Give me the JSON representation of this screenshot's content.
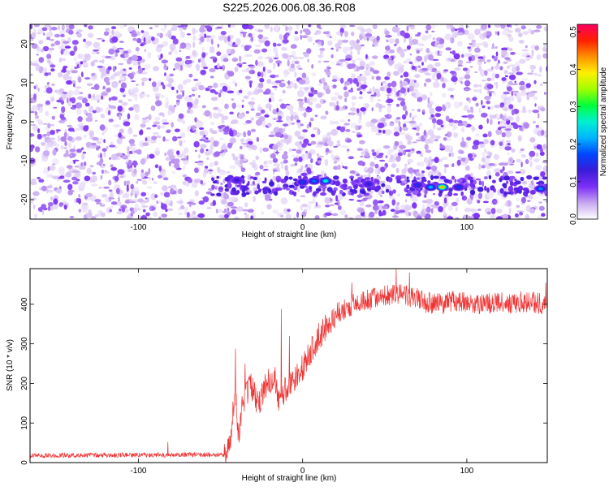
{
  "page_title": "S225.2026.006.08.36.R08",
  "colors": {
    "line": "#ee3333",
    "axis": "#000000",
    "background": "#ffffff"
  },
  "chart_data": [
    {
      "type": "heatmap",
      "title": "S225.2026.006.08.36.R08",
      "xlabel": "Height of straight line (km)",
      "ylabel": "Frequency (Hz)",
      "xlim": [
        -166,
        149
      ],
      "ylim": [
        -25,
        25
      ],
      "xticks": [
        -100,
        0,
        100
      ],
      "yticks": [
        -20,
        -10,
        0,
        10,
        20
      ],
      "grid": false,
      "colorbar": {
        "label": "Normalized spectral amplitude",
        "range": [
          0,
          0.52
        ],
        "ticks": [
          "0.0",
          "0.1",
          "0.2",
          "0.3",
          "0.4",
          "0.5"
        ],
        "colormap": "rainbow",
        "colors": [
          "#ffffff",
          "#c8a8f0",
          "#7b2ff7",
          "#3b1bd8",
          "#0046ff",
          "#00b4ff",
          "#00f0d0",
          "#00ff3c",
          "#a0ff00",
          "#fff000",
          "#ff9000",
          "#ff2000",
          "#ff0060"
        ]
      },
      "background_level": 0.05,
      "band": {
        "center_frequency": -16.5,
        "x_range": [
          -55,
          149
        ],
        "peaks": [
          {
            "x": -40,
            "y": -15,
            "value": 0.13
          },
          {
            "x": 0,
            "y": -15.5,
            "value": 0.16
          },
          {
            "x": 7,
            "y": -15.2,
            "value": 0.19
          },
          {
            "x": 14,
            "y": -15.2,
            "value": 0.26
          },
          {
            "x": 40,
            "y": -16,
            "value": 0.14
          },
          {
            "x": 70,
            "y": -16.3,
            "value": 0.15
          },
          {
            "x": 78,
            "y": -16.8,
            "value": 0.22
          },
          {
            "x": 85,
            "y": -16.8,
            "value": 0.42
          },
          {
            "x": 95,
            "y": -16.8,
            "value": 0.16
          },
          {
            "x": 145,
            "y": -17.2,
            "value": 0.2
          }
        ]
      }
    },
    {
      "type": "line",
      "xlabel": "Height of straight line (km)",
      "ylabel": "SNR (10 * v/v)",
      "xlim": [
        -166,
        149
      ],
      "ylim": [
        0,
        490
      ],
      "xticks": [
        -100,
        0,
        100
      ],
      "yticks": [
        0,
        100,
        200,
        300,
        400
      ],
      "grid": false,
      "series": [
        {
          "color": "#ee3333",
          "envelope": [
            {
              "x": -166,
              "y": 18
            },
            {
              "x": -48,
              "y": 20
            },
            {
              "x": -44,
              "y": 55
            },
            {
              "x": -41,
              "y": 185
            },
            {
              "x": -39,
              "y": 60
            },
            {
              "x": -37,
              "y": 145
            },
            {
              "x": -32,
              "y": 195
            },
            {
              "x": -27,
              "y": 150
            },
            {
              "x": -22,
              "y": 200
            },
            {
              "x": -17,
              "y": 215
            },
            {
              "x": -14,
              "y": 145
            },
            {
              "x": -10,
              "y": 190
            },
            {
              "x": -4,
              "y": 210
            },
            {
              "x": 0,
              "y": 240
            },
            {
              "x": 5,
              "y": 280
            },
            {
              "x": 10,
              "y": 320
            },
            {
              "x": 15,
              "y": 345
            },
            {
              "x": 20,
              "y": 375
            },
            {
              "x": 28,
              "y": 395
            },
            {
              "x": 38,
              "y": 410
            },
            {
              "x": 50,
              "y": 420
            },
            {
              "x": 62,
              "y": 425
            },
            {
              "x": 75,
              "y": 405
            },
            {
              "x": 85,
              "y": 400
            },
            {
              "x": 95,
              "y": 410
            },
            {
              "x": 110,
              "y": 400
            },
            {
              "x": 125,
              "y": 405
            },
            {
              "x": 140,
              "y": 405
            },
            {
              "x": 149,
              "y": 400
            }
          ],
          "spikes": [
            {
              "x": -82,
              "y": 52
            },
            {
              "x": -41,
              "y": 288
            },
            {
              "x": -35,
              "y": 250
            },
            {
              "x": -13,
              "y": 388
            },
            {
              "x": -8,
              "y": 320
            },
            {
              "x": 30,
              "y": 455
            },
            {
              "x": 57,
              "y": 490
            },
            {
              "x": 65,
              "y": 480
            },
            {
              "x": 148,
              "y": 455
            }
          ]
        }
      ]
    }
  ]
}
